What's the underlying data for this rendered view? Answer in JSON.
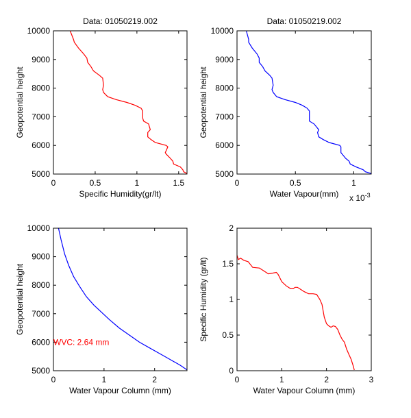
{
  "chart_data": [
    {
      "type": "line",
      "title": "Data: 01050219.002",
      "xlabel": "Specific Humidity(gr/lt)",
      "ylabel": "Geopotential height",
      "xlim": [
        0,
        1.6
      ],
      "ylim": [
        5000,
        10000
      ],
      "xticks": [
        0,
        0.5,
        1,
        1.5
      ],
      "xtick_labels": [
        "0",
        "0.5",
        "1",
        "1.5"
      ],
      "yticks": [
        5000,
        6000,
        7000,
        8000,
        9000,
        10000
      ],
      "ytick_labels": [
        "5000",
        "6000",
        "7000",
        "8000",
        "9000",
        "10000"
      ],
      "color": "#ff0000",
      "series": [
        {
          "name": "specific humidity",
          "x": [
            0.2,
            0.24,
            0.25,
            0.3,
            0.36,
            0.4,
            0.41,
            0.45,
            0.48,
            0.55,
            0.59,
            0.6,
            0.59,
            0.6,
            0.65,
            0.75,
            0.88,
            0.98,
            1.05,
            1.07,
            1.07,
            1.08,
            1.14,
            1.16,
            1.13,
            1.13,
            1.17,
            1.22,
            1.35,
            1.37,
            1.34,
            1.35,
            1.4,
            1.43,
            1.44,
            1.52,
            1.55,
            1.56,
            1.6
          ],
          "y": [
            10000,
            9700,
            9600,
            9400,
            9200,
            9050,
            8900,
            8750,
            8600,
            8450,
            8350,
            8100,
            7950,
            7850,
            7700,
            7600,
            7500,
            7400,
            7300,
            7200,
            6950,
            6850,
            6750,
            6550,
            6450,
            6300,
            6200,
            6100,
            6000,
            5950,
            5750,
            5700,
            5550,
            5450,
            5350,
            5250,
            5150,
            5080,
            5020
          ]
        }
      ]
    },
    {
      "type": "line",
      "title": "Data: 01050219.002",
      "xlabel": "Water Vapour(mm)",
      "x_multiplier": "x 10^-3",
      "ylabel": "Geopotential height",
      "xlim": [
        0,
        1.15
      ],
      "ylim": [
        5000,
        10000
      ],
      "xticks": [
        0,
        0.5,
        1
      ],
      "xtick_labels": [
        "0",
        "0.5",
        "1"
      ],
      "yticks": [
        5000,
        6000,
        7000,
        8000,
        9000,
        10000
      ],
      "ytick_labels": [
        "5000",
        "6000",
        "7000",
        "8000",
        "9000",
        "10000"
      ],
      "color": "#0000ff",
      "series": [
        {
          "name": "water vapour",
          "x": [
            0.08,
            0.1,
            0.1,
            0.13,
            0.17,
            0.19,
            0.19,
            0.22,
            0.24,
            0.28,
            0.3,
            0.31,
            0.3,
            0.31,
            0.34,
            0.41,
            0.5,
            0.56,
            0.6,
            0.62,
            0.62,
            0.62,
            0.66,
            0.7,
            0.69,
            0.7,
            0.74,
            0.79,
            0.88,
            0.89,
            0.89,
            0.9,
            0.93,
            0.96,
            0.97,
            1.02,
            1.08,
            1.1,
            1.15
          ],
          "y": [
            10000,
            9700,
            9600,
            9400,
            9200,
            9050,
            8900,
            8750,
            8600,
            8450,
            8350,
            8100,
            7950,
            7850,
            7700,
            7600,
            7500,
            7400,
            7300,
            7200,
            6950,
            6850,
            6750,
            6550,
            6450,
            6300,
            6200,
            6100,
            6000,
            5950,
            5750,
            5700,
            5550,
            5450,
            5350,
            5250,
            5150,
            5080,
            5020
          ]
        }
      ]
    },
    {
      "type": "line",
      "title": "",
      "xlabel": "Water Vapour Column (mm)",
      "ylabel": "Geopotential height",
      "xlim": [
        0,
        2.64
      ],
      "ylim": [
        5000,
        10000
      ],
      "xticks": [
        0,
        1,
        2
      ],
      "xtick_labels": [
        "0",
        "1",
        "2"
      ],
      "yticks": [
        5000,
        6000,
        7000,
        8000,
        9000,
        10000
      ],
      "ytick_labels": [
        "5000",
        "6000",
        "7000",
        "8000",
        "9000",
        "10000"
      ],
      "color": "#0000ff",
      "annotation": {
        "text": "WVC: 2.64 mm",
        "x": 0,
        "y": 6000,
        "color": "#ff0000"
      },
      "series": [
        {
          "name": "water vapour column",
          "x": [
            0.1,
            0.15,
            0.22,
            0.3,
            0.4,
            0.52,
            0.65,
            0.8,
            0.95,
            1.1,
            1.3,
            1.5,
            1.7,
            1.9,
            2.1,
            2.3,
            2.5,
            2.64
          ],
          "y": [
            10000,
            9600,
            9100,
            8700,
            8300,
            7950,
            7600,
            7300,
            7050,
            6800,
            6500,
            6250,
            6000,
            5800,
            5600,
            5400,
            5200,
            5030
          ]
        }
      ]
    },
    {
      "type": "line",
      "title": "",
      "xlabel": "Water Vapour Column (mm)",
      "ylabel": "Specific Humidity (gr/lt)",
      "xlim": [
        0,
        3
      ],
      "ylim": [
        0,
        2
      ],
      "xticks": [
        0,
        1,
        2,
        3
      ],
      "xtick_labels": [
        "0",
        "1",
        "2",
        "3"
      ],
      "yticks": [
        0,
        0.5,
        1,
        1.5,
        2
      ],
      "ytick_labels": [
        "0",
        "0.5",
        "1",
        "1.5",
        "2"
      ],
      "color": "#ff0000",
      "series": [
        {
          "name": "specific humidity vs column",
          "x": [
            0,
            0.03,
            0.08,
            0.15,
            0.25,
            0.35,
            0.5,
            0.6,
            0.7,
            0.8,
            0.88,
            0.92,
            1.0,
            1.1,
            1.2,
            1.25,
            1.3,
            1.35,
            1.4,
            1.5,
            1.6,
            1.7,
            1.78,
            1.85,
            1.9,
            1.95,
            2.0,
            2.05,
            2.1,
            2.15,
            2.2,
            2.25,
            2.3,
            2.35,
            2.4,
            2.45,
            2.5,
            2.55,
            2.6,
            2.62
          ],
          "y": [
            1.62,
            1.56,
            1.58,
            1.55,
            1.53,
            1.45,
            1.44,
            1.4,
            1.36,
            1.37,
            1.38,
            1.35,
            1.25,
            1.19,
            1.15,
            1.15,
            1.17,
            1.17,
            1.15,
            1.11,
            1.08,
            1.08,
            1.07,
            1.0,
            0.93,
            0.75,
            0.66,
            0.63,
            0.61,
            0.63,
            0.62,
            0.58,
            0.5,
            0.44,
            0.4,
            0.3,
            0.23,
            0.16,
            0.06,
            0.01
          ]
        }
      ]
    }
  ]
}
